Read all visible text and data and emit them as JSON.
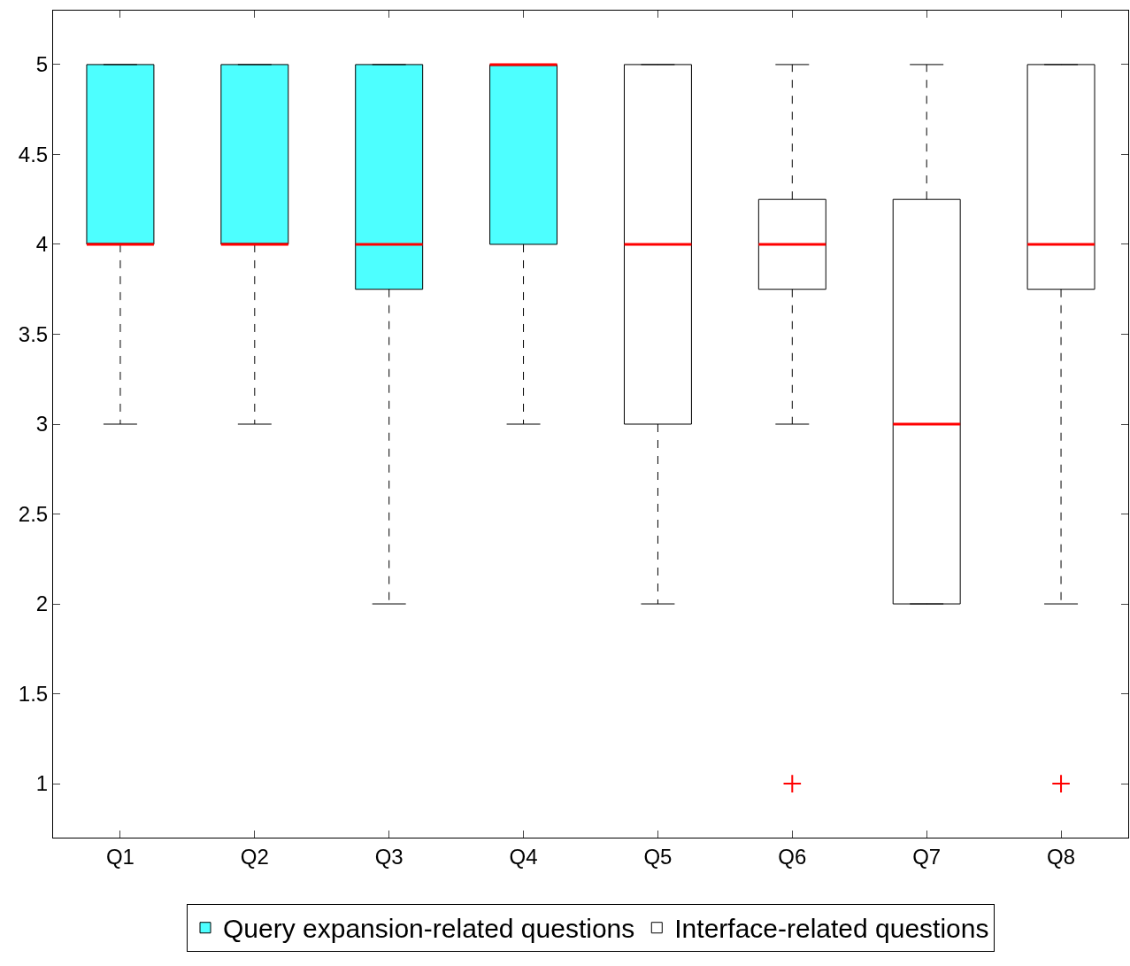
{
  "chart_data": {
    "type": "box",
    "categories": [
      "Q1",
      "Q2",
      "Q3",
      "Q4",
      "Q5",
      "Q6",
      "Q7",
      "Q8"
    ],
    "series": [
      {
        "name": "Query expansion-related questions",
        "color": "#4dffff",
        "boxes": [
          {
            "low": 3,
            "q1": 4,
            "median": 4,
            "q3": 5,
            "high": 5
          },
          {
            "low": 3,
            "q1": 4,
            "median": 4,
            "q3": 5,
            "high": 5
          },
          {
            "low": 2,
            "q1": 3.75,
            "median": 4,
            "q3": 5,
            "high": 5
          },
          {
            "low": 3,
            "q1": 4,
            "median": 5,
            "q3": 5,
            "high": 5
          },
          null,
          null,
          null,
          null
        ]
      },
      {
        "name": "Interface-related questions",
        "color": "#ffffff",
        "boxes": [
          null,
          null,
          null,
          null,
          {
            "low": 2,
            "q1": 3,
            "median": 4,
            "q3": 5,
            "high": 5
          },
          {
            "low": 3,
            "q1": 3.75,
            "median": 4,
            "q3": 4.25,
            "high": 5,
            "outliers": [
              1
            ]
          },
          {
            "low": 2,
            "q1": 2,
            "median": 3,
            "q3": 4.25,
            "high": 5
          },
          {
            "low": 2,
            "q1": 3.75,
            "median": 4,
            "q3": 5,
            "high": 5,
            "outliers": [
              1
            ]
          }
        ]
      }
    ],
    "ylim": [
      0.7,
      5.3
    ],
    "yticks": [
      1,
      1.5,
      2,
      2.5,
      3,
      3.5,
      4,
      4.5,
      5
    ],
    "legend": "bottom"
  }
}
